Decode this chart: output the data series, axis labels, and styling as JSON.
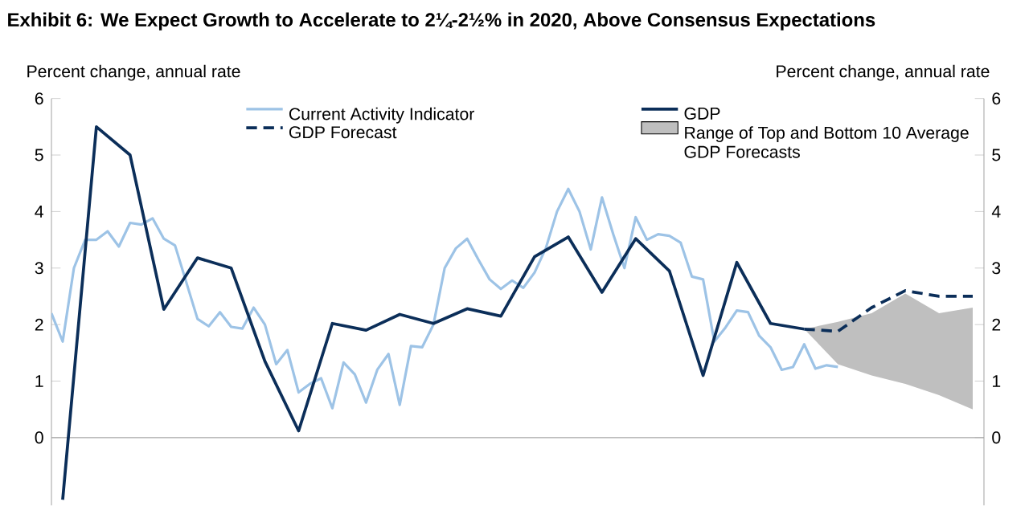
{
  "chart_data": {
    "type": "line",
    "title": "Exhibit 6: We Expect Growth to Accelerate to 2¼-2½% in 2020, Above Consensus Expectations",
    "ylabel": "Percent change, annual rate",
    "y2label": "Percent change, annual rate",
    "categories": [
      null,
      null,
      null,
      null,
      null,
      null,
      null,
      null,
      null,
      null,
      null,
      null,
      null,
      null,
      null,
      null,
      null,
      null,
      null,
      null,
      null,
      null,
      null,
      null,
      null,
      null,
      null,
      null,
      null,
      null,
      null,
      null,
      null,
      null,
      null,
      null,
      null,
      null,
      null,
      null,
      null,
      null,
      null,
      null,
      null,
      null,
      null,
      null,
      null,
      null,
      null,
      null,
      null,
      null,
      null,
      null,
      null,
      null,
      null,
      null,
      null,
      null,
      null,
      null,
      null,
      null,
      null,
      null,
      null,
      null,
      null,
      null,
      null,
      null,
      null,
      null,
      null,
      null,
      null,
      null,
      null,
      null,
      null,
      null
    ],
    "series": [
      {
        "type": "area",
        "name": "Range of Top and Bottom 10 Average GDP Forecasts",
        "color": "#bfbfbf",
        "values": [
          null,
          null,
          null,
          null,
          null,
          null,
          null,
          null,
          null,
          null,
          null,
          null,
          null,
          null,
          null,
          null,
          null,
          null,
          null,
          null,
          null,
          null,
          null,
          null,
          null,
          null,
          null,
          null,
          null,
          null,
          null,
          null,
          null,
          null,
          null,
          null,
          null,
          null,
          null,
          null,
          null,
          null,
          null,
          null,
          null,
          null,
          null,
          null,
          null,
          null,
          null,
          null,
          null,
          null,
          null,
          null,
          null,
          null,
          null,
          null,
          null,
          null,
          null,
          null,
          null,
          null,
          null,
          null,
          null,
          null,
          null,
          null,
          null,
          null,
          null,
          null,
          null,
          null,
          null,
          null,
          null,
          null,
          null,
          null
        ],
        "lower": [
          null,
          null,
          null,
          null,
          null,
          null,
          null,
          null,
          null,
          null,
          null,
          null,
          null,
          null,
          null,
          null,
          null,
          null,
          null,
          null,
          null,
          null,
          null,
          null,
          null,
          null,
          null,
          null,
          null,
          null,
          null,
          null,
          null,
          null,
          null,
          null,
          null,
          null,
          null,
          null,
          null,
          null,
          null,
          null,
          null,
          null,
          null,
          null,
          null,
          null,
          null,
          null,
          null,
          null,
          null,
          null,
          null,
          null,
          null,
          null,
          null,
          null,
          null,
          null,
          null,
          null,
          null,
          1.92,
          null,
          null,
          1.3,
          null,
          null,
          1.1,
          null,
          null,
          0.95,
          null,
          null,
          0.75,
          null,
          null,
          0.5,
          null
        ],
        "upper": [
          null,
          null,
          null,
          null,
          null,
          null,
          null,
          null,
          null,
          null,
          null,
          null,
          null,
          null,
          null,
          null,
          null,
          null,
          null,
          null,
          null,
          null,
          null,
          null,
          null,
          null,
          null,
          null,
          null,
          null,
          null,
          null,
          null,
          null,
          null,
          null,
          null,
          null,
          null,
          null,
          null,
          null,
          null,
          null,
          null,
          null,
          null,
          null,
          null,
          null,
          null,
          null,
          null,
          null,
          null,
          null,
          null,
          null,
          null,
          null,
          null,
          null,
          null,
          null,
          null,
          null,
          null,
          1.92,
          null,
          null,
          2.05,
          null,
          null,
          2.2,
          null,
          null,
          2.55,
          null,
          null,
          2.2,
          null,
          null,
          2.3,
          null
        ]
      },
      {
        "name": "Current Activity Indicator",
        "color": "#9dc3e6",
        "line_style": "solid",
        "values": [
          2.2,
          1.7,
          3.0,
          3.5,
          3.5,
          3.65,
          3.38,
          3.8,
          3.77,
          3.88,
          3.52,
          3.4,
          2.75,
          2.1,
          1.97,
          2.22,
          1.96,
          1.93,
          2.3,
          2.0,
          1.3,
          1.55,
          0.8,
          0.95,
          1.05,
          0.52,
          1.33,
          1.12,
          0.62,
          1.2,
          1.48,
          0.58,
          1.62,
          1.6,
          2.0,
          3.0,
          3.35,
          3.52,
          3.15,
          2.8,
          2.63,
          2.78,
          2.65,
          2.92,
          3.35,
          4.0,
          4.4,
          4.0,
          3.33,
          4.25,
          3.6,
          3.0,
          3.9,
          3.5,
          3.6,
          3.57,
          3.45,
          2.85,
          2.8,
          1.7,
          1.95,
          2.25,
          2.22,
          1.8,
          1.6,
          1.2,
          1.25,
          1.65,
          1.22,
          1.28,
          1.25,
          null,
          null,
          null,
          null,
          null,
          null,
          null,
          null,
          null,
          null,
          null,
          null,
          null
        ]
      },
      {
        "name": "GDP",
        "color": "#0b2e59",
        "line_style": "solid",
        "values": [
          null,
          -1.1,
          null,
          null,
          5.5,
          null,
          null,
          5.0,
          null,
          null,
          2.27,
          null,
          null,
          3.18,
          null,
          null,
          3.0,
          null,
          null,
          1.35,
          null,
          null,
          0.12,
          null,
          null,
          2.02,
          null,
          null,
          1.9,
          null,
          null,
          2.18,
          null,
          null,
          2.02,
          null,
          null,
          2.28,
          null,
          null,
          2.15,
          null,
          null,
          3.2,
          null,
          null,
          3.55,
          null,
          null,
          2.57,
          null,
          null,
          3.52,
          null,
          null,
          2.95,
          null,
          null,
          1.1,
          null,
          null,
          3.1,
          null,
          null,
          2.02,
          null,
          null,
          1.92,
          null,
          null,
          null,
          null,
          null,
          null,
          null,
          null,
          null,
          null,
          null,
          null,
          null,
          null,
          null,
          null
        ]
      },
      {
        "name": "GDP Forecast",
        "color": "#0b2e59",
        "line_style": "dashed",
        "values": [
          null,
          null,
          null,
          null,
          null,
          null,
          null,
          null,
          null,
          null,
          null,
          null,
          null,
          null,
          null,
          null,
          null,
          null,
          null,
          null,
          null,
          null,
          null,
          null,
          null,
          null,
          null,
          null,
          null,
          null,
          null,
          null,
          null,
          null,
          null,
          null,
          null,
          null,
          null,
          null,
          null,
          null,
          null,
          null,
          null,
          null,
          null,
          null,
          null,
          null,
          null,
          null,
          null,
          null,
          null,
          null,
          null,
          null,
          null,
          null,
          null,
          null,
          null,
          null,
          null,
          null,
          null,
          1.92,
          null,
          null,
          1.88,
          null,
          null,
          2.3,
          null,
          null,
          2.6,
          null,
          null,
          2.5,
          null,
          null,
          2.5,
          null
        ]
      }
    ],
    "ylim": [
      -1.2,
      6
    ],
    "yticks": [
      0,
      1,
      2,
      3,
      4,
      5,
      6
    ],
    "y2lim": [
      -1.2,
      6
    ],
    "y2ticks": [
      0,
      1,
      2,
      3,
      4,
      5,
      6
    ],
    "legend": "top"
  }
}
